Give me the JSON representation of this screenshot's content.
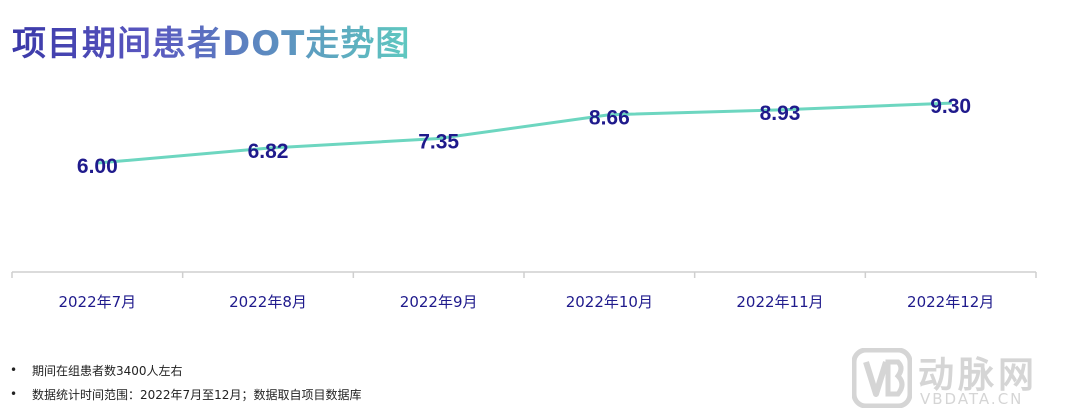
{
  "page": {
    "title": "项目期间患者DOT走势图"
  },
  "chart_data": {
    "type": "line",
    "categories": [
      "2022年7月",
      "2022年8月",
      "2022年9月",
      "2022年10月",
      "2022年11月",
      "2022年12月"
    ],
    "series": [
      {
        "values": [
          6.0,
          6.82,
          7.35,
          8.66,
          8.93,
          9.3
        ]
      }
    ],
    "data_labels": [
      "6.00",
      "6.82",
      "7.35",
      "8.66",
      "8.93",
      "9.30"
    ],
    "ylim": [
      0,
      12.5
    ],
    "grid": false,
    "line_color": "#6dd6c0",
    "label_color": "#1f1a8c",
    "axis_color": "#cfcfcf"
  },
  "notes": [
    "期间在组患者数3400人左右",
    "数据统计时间范围：2022年7月至12月；数据取自项目数据库"
  ],
  "logo": {
    "cn": "动脉网",
    "en": "VBDATA.CN"
  }
}
